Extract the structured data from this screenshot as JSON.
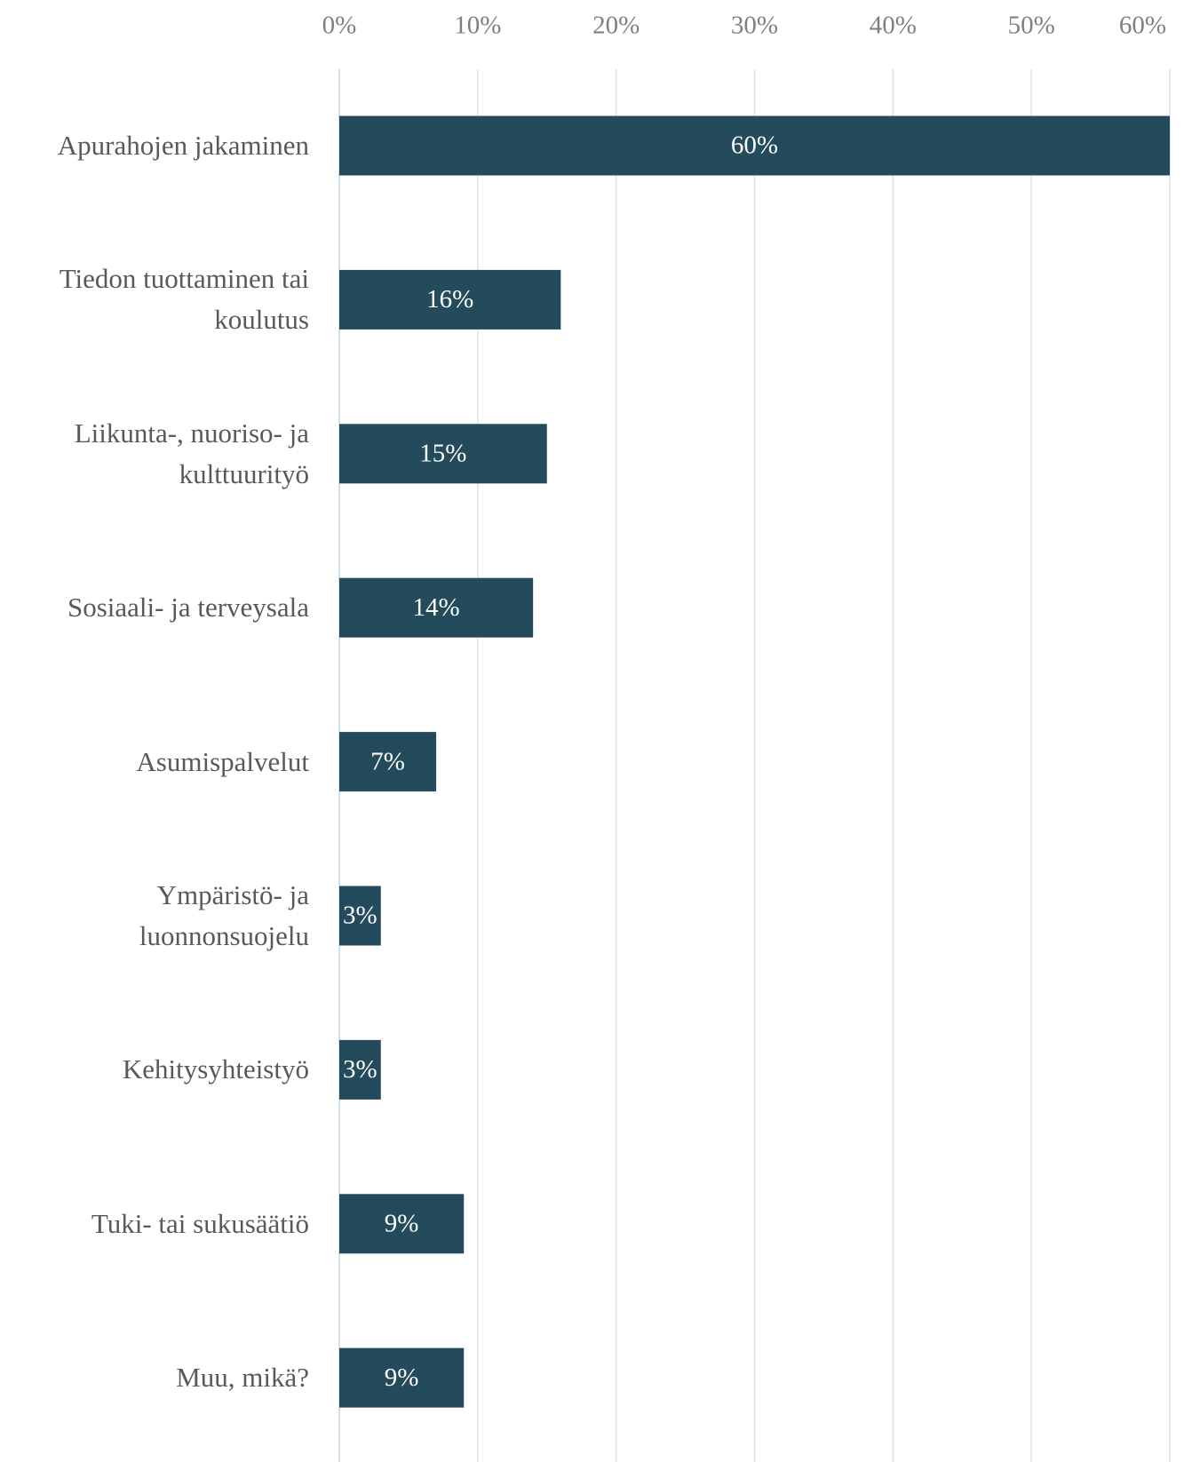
{
  "chart_data": {
    "type": "bar",
    "orientation": "horizontal",
    "categories": [
      "Apurahojen jakaminen",
      "Tiedon tuottaminen tai koulutus",
      "Liikunta-, nuoriso- ja kulttuurityö",
      "Sosiaali- ja terveysala",
      "Asumispalvelut",
      "Ympäristö- ja luonnonsuojelu",
      "Kehitysyhteistyö",
      "Tuki- tai sukusäätiö",
      "Muu, mikä?"
    ],
    "values": [
      60,
      16,
      15,
      14,
      7,
      3,
      3,
      9,
      9
    ],
    "value_labels": [
      "60%",
      "16%",
      "15%",
      "14%",
      "7%",
      "3%",
      "3%",
      "9%",
      "9%"
    ],
    "color": "#244b5b",
    "xlim": [
      0,
      60
    ],
    "xticks": [
      {
        "value": 0,
        "label": "0%"
      },
      {
        "value": 10,
        "label": "10%"
      },
      {
        "value": 20,
        "label": "20%"
      },
      {
        "value": 30,
        "label": "30%"
      },
      {
        "value": 40,
        "label": "40%"
      },
      {
        "value": 50,
        "label": "50%"
      },
      {
        "value": 60,
        "label": "60%"
      }
    ],
    "grid": true
  }
}
